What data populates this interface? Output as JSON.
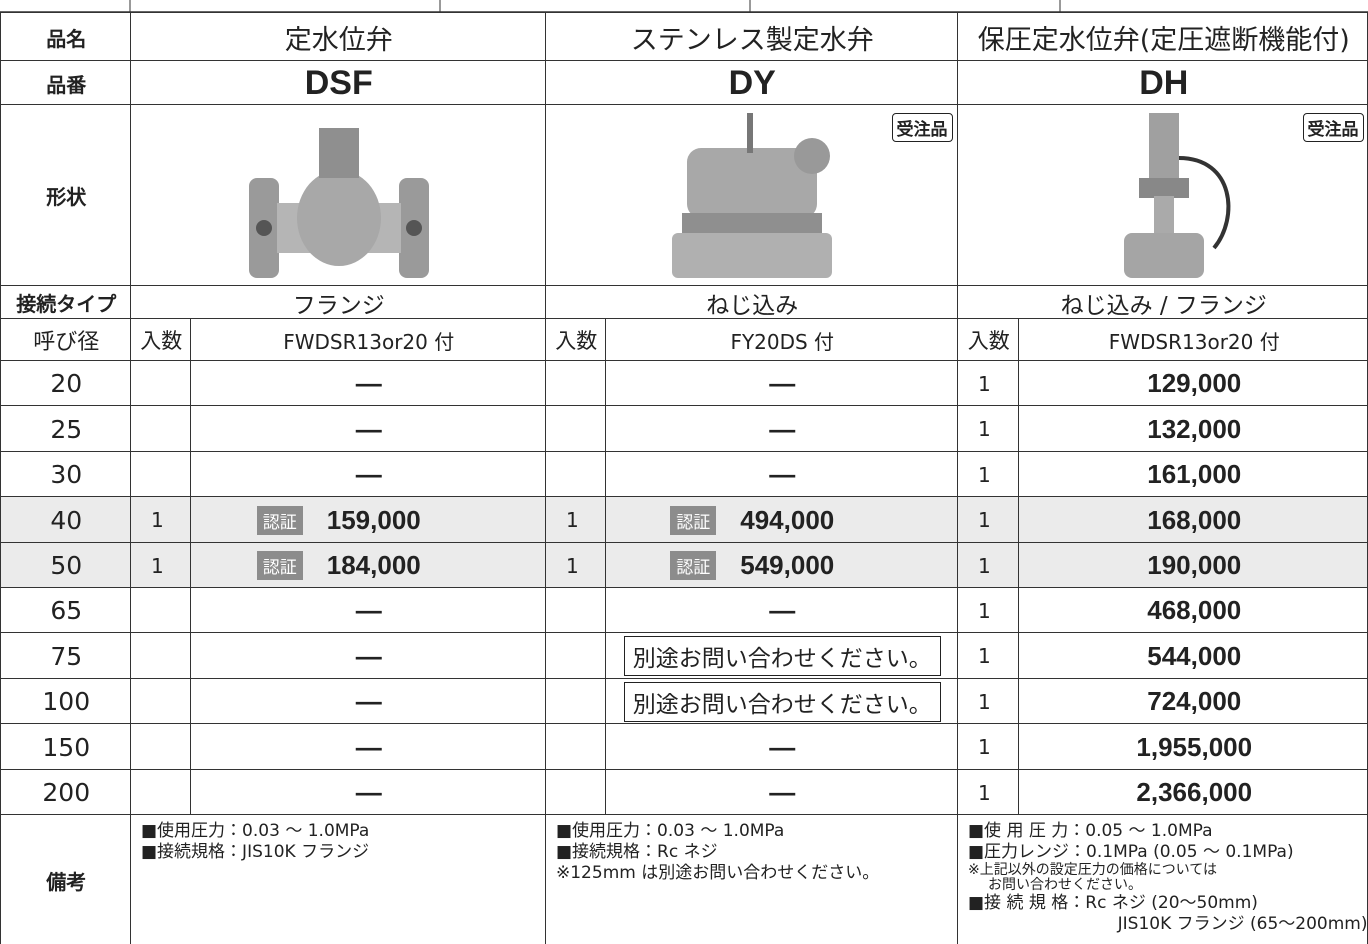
{
  "header": {
    "name": "品名",
    "code": "品番",
    "shape": "形状",
    "connection": "接続タイプ",
    "size": "呼び径",
    "notes": "備考",
    "qty": "入数"
  },
  "certified_badge": "認証",
  "products": [
    {
      "name": "定水位弁",
      "code": "DSF",
      "connection": "フランジ",
      "accessory": "FWDSR13or20 付",
      "notes": [
        {
          "text": "■使用圧力：0.03 ～ 1.0MPa"
        },
        {
          "text": "■接続規格：JIS10K フランジ"
        }
      ]
    },
    {
      "name": "ステンレス製定水弁",
      "code": "DY",
      "order_badge": "受注品",
      "connection": "ねじ込み",
      "accessory": "FY20DS 付",
      "notes": [
        {
          "text": "■使用圧力：0.03 ～ 1.0MPa"
        },
        {
          "text": "■接続規格：Rc ネジ"
        },
        {
          "text": "※125mm は別途お問い合わせください。"
        }
      ]
    },
    {
      "name": "保圧定水位弁(定圧遮断機能付)",
      "code": "DH",
      "order_badge": "受注品",
      "connection": "ねじ込み / フランジ",
      "accessory": "FWDSR13or20 付",
      "notes": [
        {
          "text": "■使 用 圧 力：0.05 ～ 1.0MPa"
        },
        {
          "text": "■圧力レンジ：0.1MPa (0.05 ～ 0.1MPa)"
        },
        {
          "text": "※上記以外の設定圧力の価格については",
          "small": true
        },
        {
          "text": "お問い合わせください。",
          "small": true,
          "indent": true
        },
        {
          "text": "■接 続 規 格：Rc ネジ (20～50mm)"
        },
        {
          "text": "JIS10K フランジ (65～200mm)",
          "align": "right"
        }
      ]
    }
  ],
  "rows": [
    {
      "size": "20",
      "cells": [
        {
          "price": "—"
        },
        {
          "price": "—"
        },
        {
          "qty": "1",
          "price": "129,000"
        }
      ]
    },
    {
      "size": "25",
      "cells": [
        {
          "price": "—"
        },
        {
          "price": "—"
        },
        {
          "qty": "1",
          "price": "132,000"
        }
      ]
    },
    {
      "size": "30",
      "cells": [
        {
          "price": "—"
        },
        {
          "price": "—"
        },
        {
          "qty": "1",
          "price": "161,000"
        }
      ]
    },
    {
      "size": "40",
      "shaded": true,
      "cells": [
        {
          "qty": "1",
          "price": "159,000",
          "certified": true
        },
        {
          "qty": "1",
          "price": "494,000",
          "certified": true
        },
        {
          "qty": "1",
          "price": "168,000"
        }
      ]
    },
    {
      "size": "50",
      "shaded": true,
      "cells": [
        {
          "qty": "1",
          "price": "184,000",
          "certified": true
        },
        {
          "qty": "1",
          "price": "549,000",
          "certified": true
        },
        {
          "qty": "1",
          "price": "190,000"
        }
      ]
    },
    {
      "size": "65",
      "cells": [
        {
          "price": "—"
        },
        {
          "price": "—"
        },
        {
          "qty": "1",
          "price": "468,000"
        }
      ]
    },
    {
      "size": "75",
      "cells": [
        {
          "price": "—"
        },
        {
          "price": "別途お問い合わせください。",
          "boxed": true
        },
        {
          "qty": "1",
          "price": "544,000"
        }
      ]
    },
    {
      "size": "100",
      "cells": [
        {
          "price": "—"
        },
        {
          "price": "別途お問い合わせください。",
          "boxed": true
        },
        {
          "qty": "1",
          "price": "724,000"
        }
      ]
    },
    {
      "size": "150",
      "cells": [
        {
          "price": "—"
        },
        {
          "price": "—"
        },
        {
          "qty": "1",
          "price": "1,955,000"
        }
      ]
    },
    {
      "size": "200",
      "cells": [
        {
          "price": "—"
        },
        {
          "price": "—"
        },
        {
          "qty": "1",
          "price": "2,366,000"
        }
      ]
    }
  ]
}
